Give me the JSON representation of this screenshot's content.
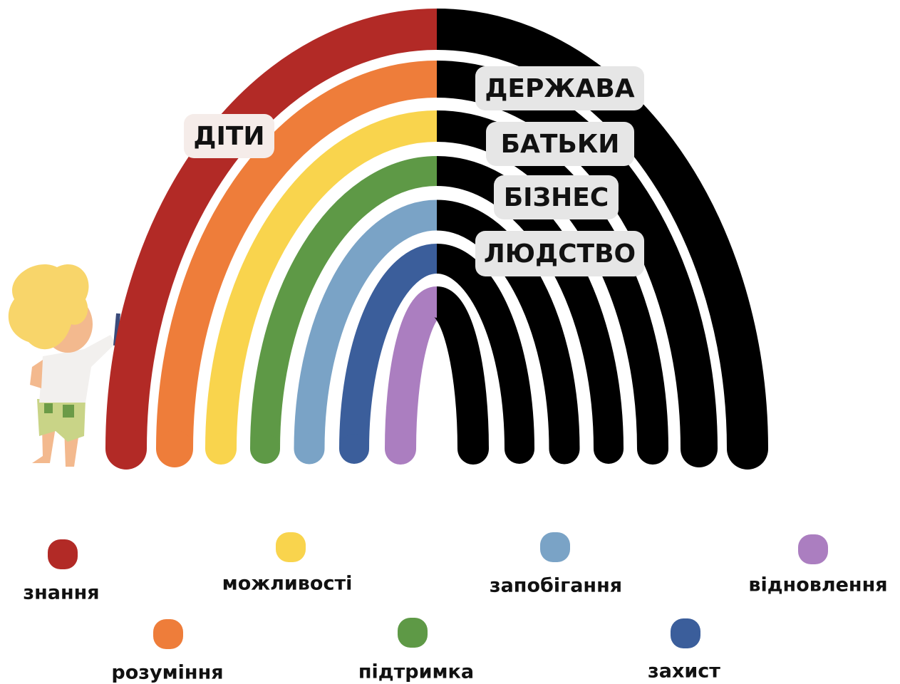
{
  "labels": [
    "ДІТИ",
    "ДЕРЖАВА",
    "БАТЬКИ",
    "БІЗНЕС",
    "ЛЮДСТВО"
  ],
  "legend": [
    {
      "label": "знання",
      "color": "#b22a26"
    },
    {
      "label": "розуміння",
      "color": "#ee7d3a"
    },
    {
      "label": "можливості",
      "color": "#f9d44d"
    },
    {
      "label": "підтримка",
      "color": "#5e9946"
    },
    {
      "label": "запобігання",
      "color": "#7aa3c6"
    },
    {
      "label": "захист",
      "color": "#3b5e9b"
    },
    {
      "label": "відновлення",
      "color": "#ab7ec0"
    }
  ]
}
